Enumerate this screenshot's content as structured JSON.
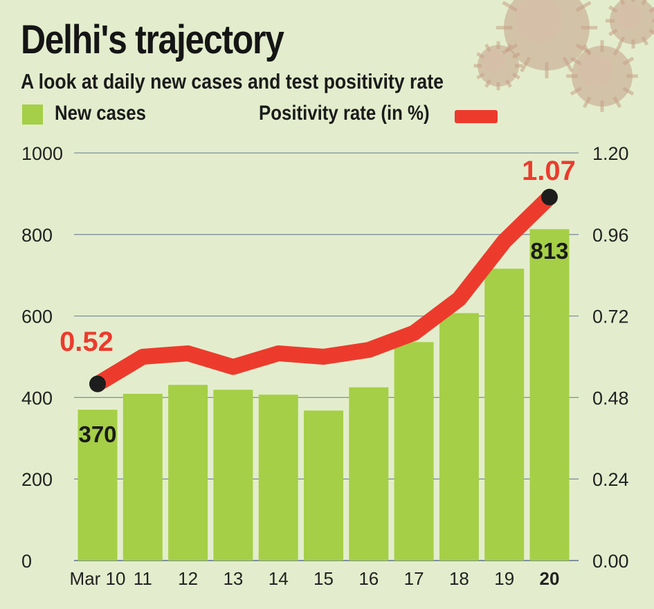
{
  "header": {
    "title": "Delhi's trajectory",
    "subtitle": "A look at daily new cases and test positivity rate"
  },
  "legend": {
    "cases_label": "New cases",
    "rate_label": "Positivity rate (in %)"
  },
  "colors": {
    "background": "#e3edcd",
    "bar": "#a5cf46",
    "line": "#ec3b2d",
    "grid": "#7d8e9c",
    "marker": "#1d1d1d"
  },
  "decoration": {
    "virus_icon": "coronavirus-icon"
  },
  "chart_data": {
    "type": "bar",
    "title": "Delhi's trajectory",
    "subtitle": "A look at daily new cases and test positivity rate",
    "categories": [
      "Mar 10",
      "11",
      "12",
      "13",
      "14",
      "15",
      "16",
      "17",
      "18",
      "19",
      "20"
    ],
    "series": [
      {
        "name": "New cases",
        "type": "bar",
        "axis": "left",
        "values": [
          370,
          409,
          431,
          419,
          407,
          368,
          425,
          536,
          607,
          716,
          813
        ]
      },
      {
        "name": "Positivity rate (in %)",
        "type": "line",
        "axis": "right",
        "values": [
          0.52,
          0.6,
          0.61,
          0.57,
          0.61,
          0.6,
          0.62,
          0.67,
          0.77,
          0.94,
          1.07
        ]
      }
    ],
    "left_axis": {
      "min": 0,
      "max": 1000,
      "ticks": [
        "0",
        "200",
        "400",
        "600",
        "800",
        "1000"
      ]
    },
    "right_axis": {
      "min": 0,
      "max": 1.2,
      "ticks": [
        "0.00",
        "0.24",
        "0.48",
        "0.72",
        "0.96",
        "1.20"
      ]
    },
    "annotations": {
      "first_cases": "370",
      "last_cases": "813",
      "first_rate": "0.52",
      "last_rate": "1.07"
    },
    "bold_category": "20",
    "grid": true
  }
}
